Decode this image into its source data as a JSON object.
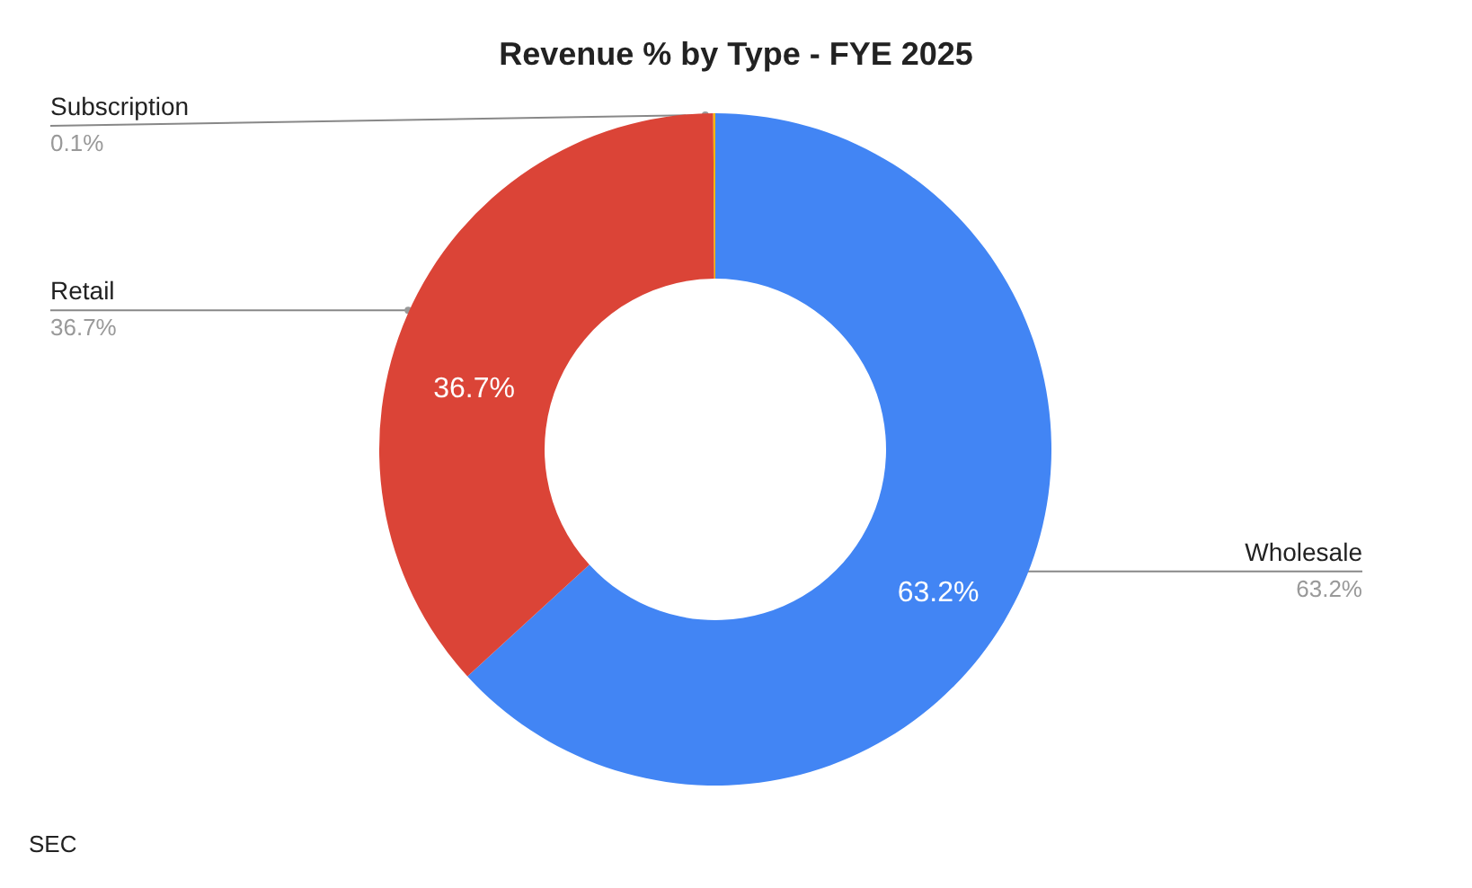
{
  "chart_data": {
    "type": "donut",
    "title": "Revenue % by Type - FYE 2025",
    "categories": [
      "Wholesale",
      "Retail",
      "Subscription"
    ],
    "values": [
      63.2,
      36.7,
      0.1
    ],
    "colors": [
      "#4285f4",
      "#db4437",
      "#f4b400"
    ],
    "value_labels": [
      "63.2%",
      "36.7%",
      "0.1%"
    ],
    "annotations": [
      "SEC"
    ]
  }
}
